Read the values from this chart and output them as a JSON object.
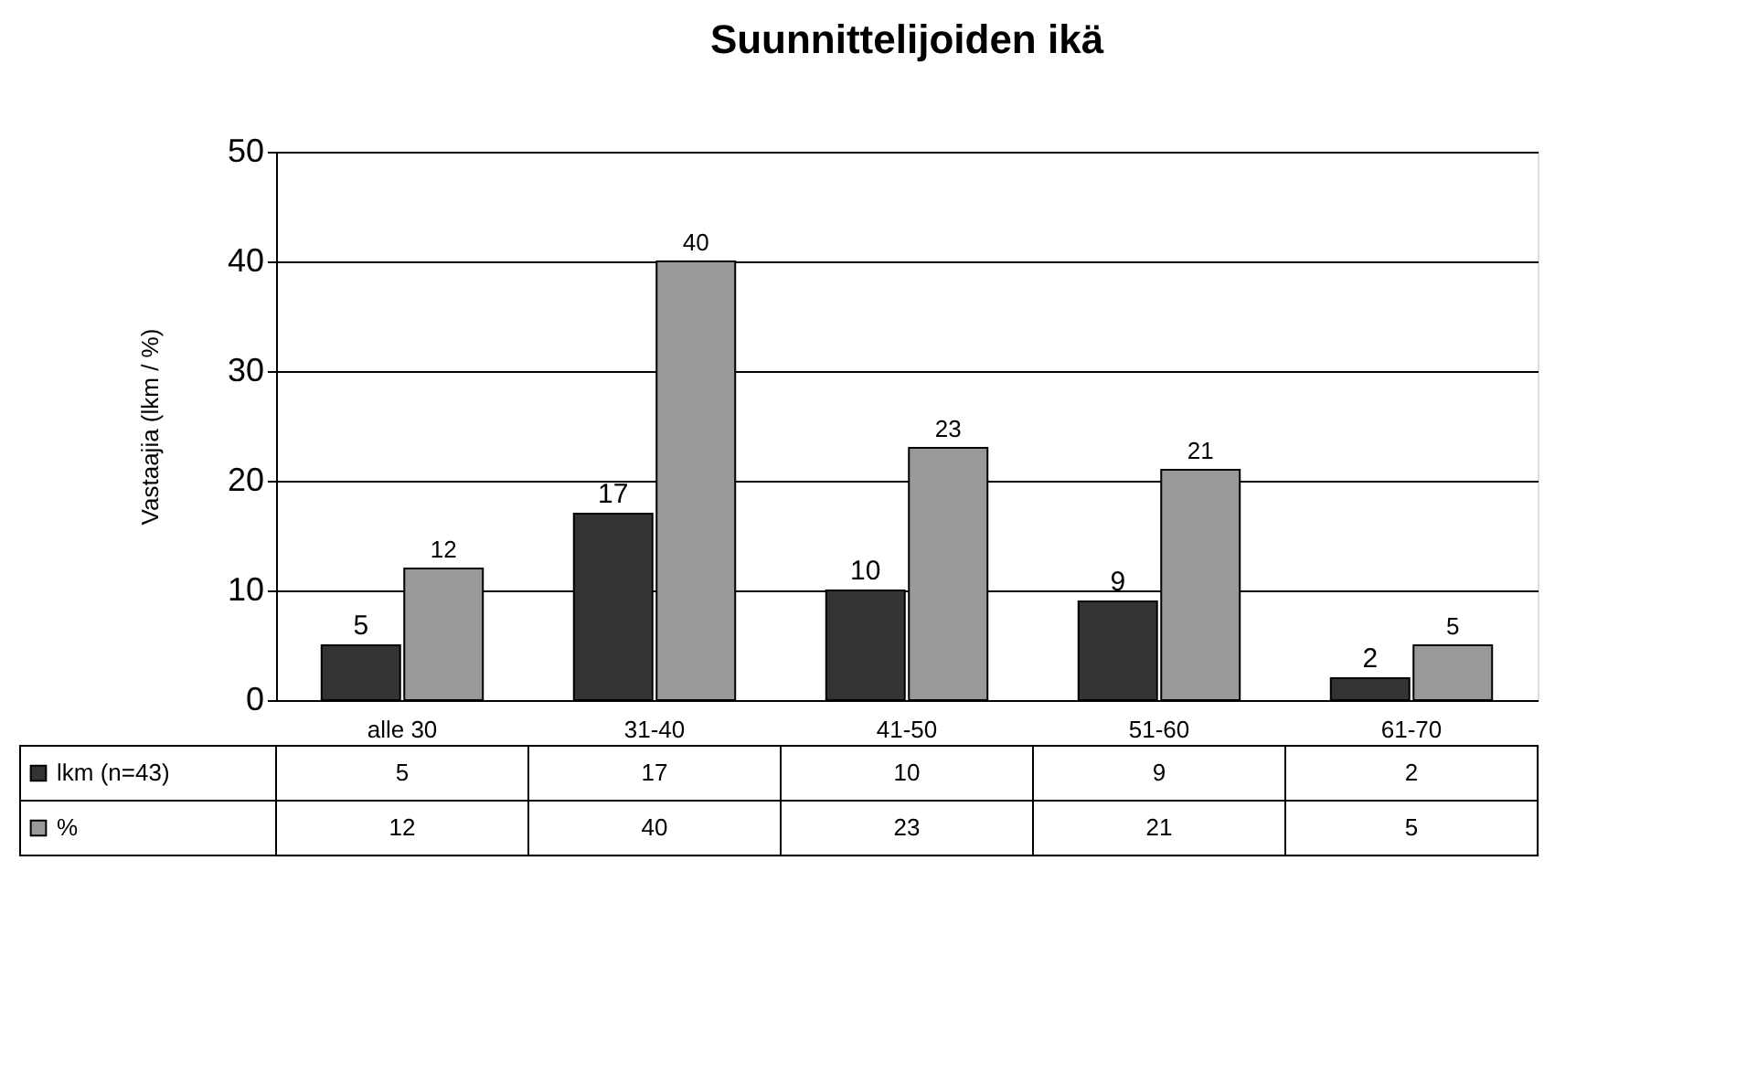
{
  "chart_data": {
    "type": "bar",
    "title": "Suunnittelijoiden ikä",
    "ylabel": "Vastaajia (lkm / %)",
    "categories": [
      "alle 30",
      "31-40",
      "41-50",
      "51-60",
      "61-70"
    ],
    "series": [
      {
        "name": "lkm (n=43)",
        "color": "#333333",
        "values": [
          5,
          17,
          10,
          9,
          2
        ],
        "value_labels": [
          "5",
          "17",
          "10",
          "9",
          "2"
        ]
      },
      {
        "name": "%",
        "color": "#999999",
        "values": [
          12,
          40,
          23,
          21,
          5
        ],
        "value_labels": [
          "12",
          "40",
          "23",
          "21",
          "5"
        ]
      }
    ],
    "annotations": [
      "5",
      "17",
      "10",
      "9",
      "2",
      "12",
      "40",
      "23",
      "21",
      "5"
    ],
    "ylim": [
      0,
      50
    ],
    "yticks": [
      0,
      10,
      20,
      30,
      40,
      50
    ],
    "grid": "y",
    "legend": "bottom"
  }
}
